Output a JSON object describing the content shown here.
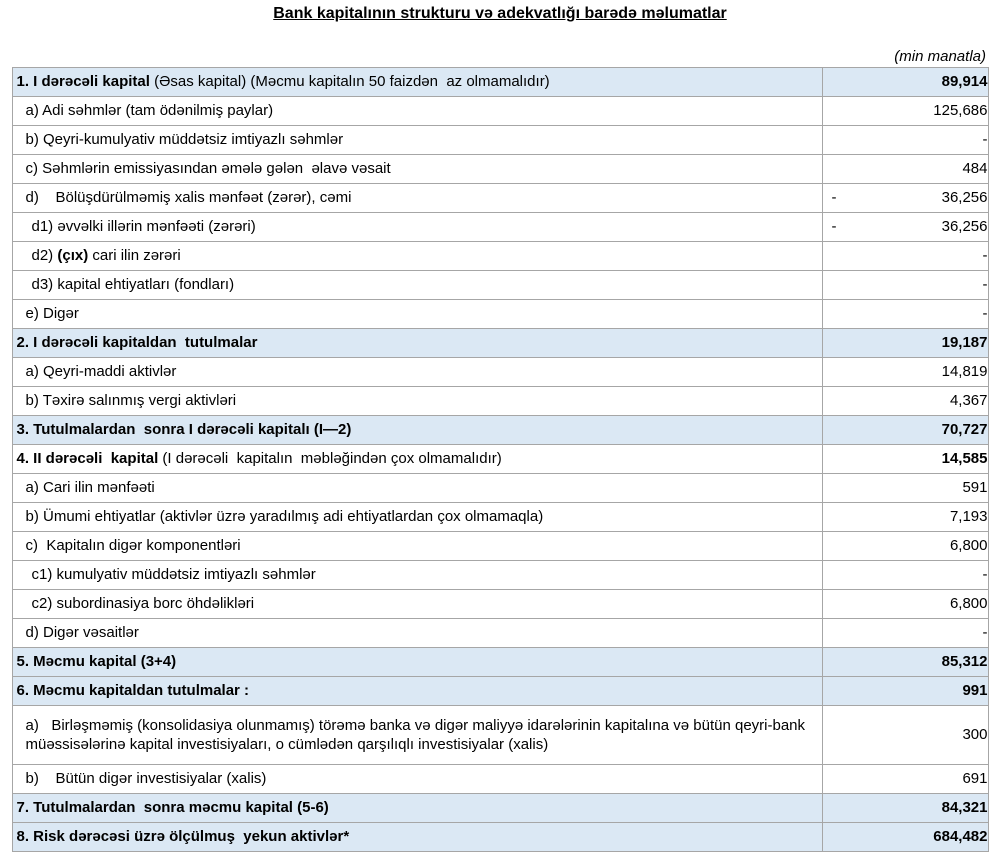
{
  "title": "Bank kapitalının strukturu və adekvatlığı barədə məlumatlar",
  "unit_note": "(min manatla)",
  "colors": {
    "row_highlight": "#dbe8f4",
    "border": "#a6a6a6",
    "text": "#000000"
  },
  "table": {
    "rows": [
      {
        "indent": 0,
        "highlight": true,
        "tall": false,
        "value_bold": true,
        "neg": "",
        "value": "89,914",
        "segments": [
          {
            "t": "1. I dərəcəli kapital ",
            "b": true
          },
          {
            "t": "(Əsas kapital) (Məcmu kapitalın 50 faizdən  az olmamalıdır)",
            "b": false
          }
        ]
      },
      {
        "indent": 1,
        "highlight": false,
        "tall": false,
        "value_bold": false,
        "neg": "",
        "value": "125,686",
        "segments": [
          {
            "t": "a) Adi səhmlər (tam ödənilmiş paylar)",
            "b": false
          }
        ]
      },
      {
        "indent": 1,
        "highlight": false,
        "tall": false,
        "value_bold": false,
        "neg": "",
        "value": "-",
        "segments": [
          {
            "t": "b) Qeyri-kumulyativ müddətsiz imtiyazlı səhmlər",
            "b": false
          }
        ]
      },
      {
        "indent": 1,
        "highlight": false,
        "tall": false,
        "value_bold": false,
        "neg": "",
        "value": "484",
        "segments": [
          {
            "t": "c) Səhmlərin emissiyasından əmələ gələn  əlavə vəsait",
            "b": false
          }
        ]
      },
      {
        "indent": 1,
        "highlight": false,
        "tall": false,
        "value_bold": false,
        "neg": "-",
        "value": "36,256",
        "segments": [
          {
            "t": "d)    Bölüşdürülməmiş xalis mənfəət (zərər), cəmi",
            "b": false
          }
        ]
      },
      {
        "indent": 2,
        "highlight": false,
        "tall": false,
        "value_bold": false,
        "neg": "-",
        "value": "36,256",
        "segments": [
          {
            "t": "d1) əvvəlki illərin mənfəəti (zərəri)",
            "b": false
          }
        ]
      },
      {
        "indent": 2,
        "highlight": false,
        "tall": false,
        "value_bold": false,
        "neg": "",
        "value": "-",
        "segments": [
          {
            "t": "d2) ",
            "b": false
          },
          {
            "t": "(çıx)",
            "b": true
          },
          {
            "t": " cari ilin zərəri",
            "b": false
          }
        ]
      },
      {
        "indent": 2,
        "highlight": false,
        "tall": false,
        "value_bold": false,
        "neg": "",
        "value": "-",
        "segments": [
          {
            "t": "d3) kapital ehtiyatları (fondları)",
            "b": false
          }
        ]
      },
      {
        "indent": 1,
        "highlight": false,
        "tall": false,
        "value_bold": false,
        "neg": "",
        "value": "-",
        "segments": [
          {
            "t": "e) Digər",
            "b": false
          }
        ]
      },
      {
        "indent": 0,
        "highlight": true,
        "tall": false,
        "value_bold": true,
        "neg": "",
        "value": "19,187",
        "segments": [
          {
            "t": "2. I dərəcəli kapitaldan  tutulmalar",
            "b": true
          }
        ]
      },
      {
        "indent": 1,
        "highlight": false,
        "tall": false,
        "value_bold": false,
        "neg": "",
        "value": "14,819",
        "segments": [
          {
            "t": "a) Qeyri-maddi aktivlər",
            "b": false
          }
        ]
      },
      {
        "indent": 1,
        "highlight": false,
        "tall": false,
        "value_bold": false,
        "neg": "",
        "value": "4,367",
        "segments": [
          {
            "t": "b) Təxirə salınmış vergi aktivləri",
            "b": false
          }
        ]
      },
      {
        "indent": 0,
        "highlight": true,
        "tall": false,
        "value_bold": true,
        "neg": "",
        "value": "70,727",
        "segments": [
          {
            "t": "3. Tutulmalardan  sonra I dərəcəli kapitalı (I—2)",
            "b": true
          }
        ]
      },
      {
        "indent": 0,
        "highlight": false,
        "tall": false,
        "value_bold": true,
        "neg": "",
        "value": "14,585",
        "segments": [
          {
            "t": "4. II dərəcəli  kapital ",
            "b": true
          },
          {
            "t": "(I dərəcəli  kapitalın  məbləğindən çox olmamalıdır)",
            "b": false
          }
        ]
      },
      {
        "indent": 1,
        "highlight": false,
        "tall": false,
        "value_bold": false,
        "neg": "",
        "value": "591",
        "segments": [
          {
            "t": "a) Cari ilin mənfəəti",
            "b": false
          }
        ]
      },
      {
        "indent": 1,
        "highlight": false,
        "tall": false,
        "value_bold": false,
        "neg": "",
        "value": "7,193",
        "segments": [
          {
            "t": "b) Ümumi ehtiyatlar (aktivlər üzrə yaradılmış adi ehtiyatlardan çox olmamaqla)",
            "b": false
          }
        ]
      },
      {
        "indent": 1,
        "highlight": false,
        "tall": false,
        "value_bold": false,
        "neg": "",
        "value": "6,800",
        "segments": [
          {
            "t": "c)  Kapitalın digər komponentləri",
            "b": false
          }
        ]
      },
      {
        "indent": 2,
        "highlight": false,
        "tall": false,
        "value_bold": false,
        "neg": "",
        "value": "-",
        "segments": [
          {
            "t": "c1) kumulyativ müddətsiz imtiyazlı səhmlər",
            "b": false
          }
        ]
      },
      {
        "indent": 2,
        "highlight": false,
        "tall": false,
        "value_bold": false,
        "neg": "",
        "value": "6,800",
        "segments": [
          {
            "t": "c2) subordinasiya borc öhdəlikləri",
            "b": false
          }
        ]
      },
      {
        "indent": 1,
        "highlight": false,
        "tall": false,
        "value_bold": false,
        "neg": "",
        "value": "-",
        "segments": [
          {
            "t": "d) Digər vəsaitlər",
            "b": false
          }
        ]
      },
      {
        "indent": 0,
        "highlight": true,
        "tall": false,
        "value_bold": true,
        "neg": "",
        "value": "85,312",
        "segments": [
          {
            "t": "5. Məcmu kapital (3+4)",
            "b": true
          }
        ]
      },
      {
        "indent": 0,
        "highlight": true,
        "tall": false,
        "value_bold": true,
        "neg": "",
        "value": "991",
        "segments": [
          {
            "t": "6. Məcmu kapitaldan tutulmalar :",
            "b": true
          }
        ]
      },
      {
        "indent": 1,
        "highlight": false,
        "tall": true,
        "value_bold": false,
        "neg": "",
        "value": "300",
        "segments": [
          {
            "t": "a)   Birləşməmiş (konsolidasiya olunmamış) törəmə banka və digər maliyyə idarələrinin kapitalına və bütün qeyri-bank müəssisələrinə kapital investisiyaları, o cümlədən qarşılıqlı investisiyalar (xalis)",
            "b": false
          }
        ]
      },
      {
        "indent": 1,
        "highlight": false,
        "tall": false,
        "value_bold": false,
        "neg": "",
        "value": "691",
        "segments": [
          {
            "t": "b)    Bütün digər investisiyalar (xalis)",
            "b": false
          }
        ]
      },
      {
        "indent": 0,
        "highlight": true,
        "tall": false,
        "value_bold": true,
        "neg": "",
        "value": "84,321",
        "segments": [
          {
            "t": "7. Tutulmalardan  sonra məcmu kapital (5-6)",
            "b": true
          }
        ]
      },
      {
        "indent": 0,
        "highlight": true,
        "tall": false,
        "value_bold": true,
        "neg": "",
        "value": "684,482",
        "segments": [
          {
            "t": "8. Risk dərəcəsi üzrə ölçülmuş  yekun aktivlər*",
            "b": true
          }
        ]
      }
    ]
  }
}
